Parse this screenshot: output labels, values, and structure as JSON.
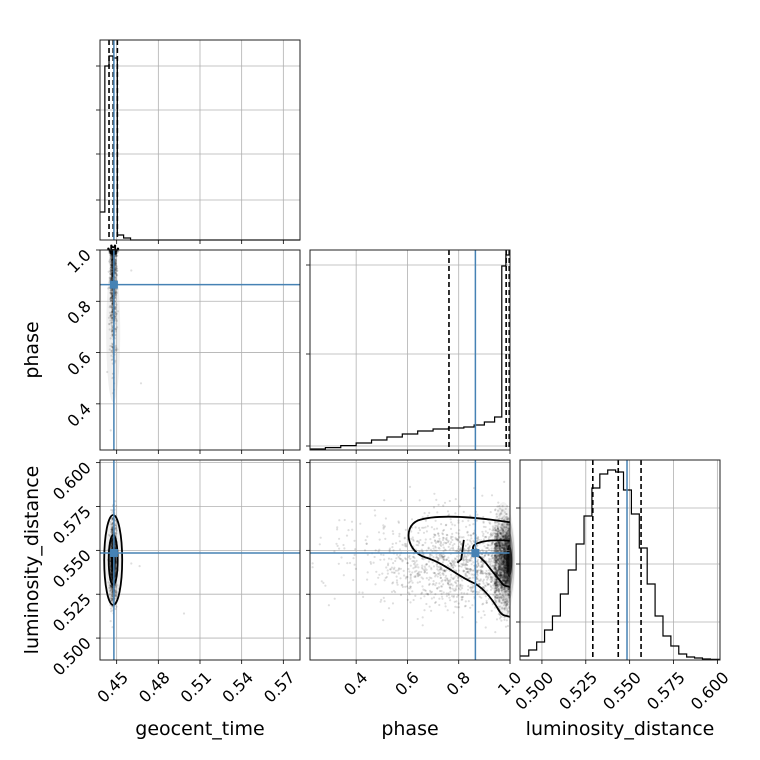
{
  "chart_data": {
    "type": "corner",
    "parameters": [
      {
        "name": "geocent_time",
        "label": "geocent_time",
        "truth": 0.448,
        "quantiles": [
          0.4445,
          0.4475,
          0.4505
        ],
        "range": [
          0.438,
          0.582
        ],
        "ticks": [
          0.45,
          0.48,
          0.51,
          0.54,
          0.57
        ],
        "tick_labels": [
          "0.45",
          "0.48",
          "0.51",
          "0.54",
          "0.57"
        ]
      },
      {
        "name": "phase",
        "label": "phase",
        "truth": 0.865,
        "quantiles": [
          0.762,
          0.985,
          0.997
        ],
        "range": [
          0.22,
          1.0
        ],
        "ticks": [
          0.4,
          0.6,
          0.8,
          1.0
        ],
        "tick_labels": [
          "0.4",
          "0.6",
          "0.8",
          "1.0"
        ]
      },
      {
        "name": "luminosity_distance",
        "label": "luminosity_distance",
        "truth": 0.5485,
        "quantiles": [
          0.529,
          0.5435,
          0.5565
        ],
        "range": [
          0.4875,
          0.6015
        ],
        "ticks": [
          0.5,
          0.525,
          0.55,
          0.575,
          0.6
        ],
        "tick_labels": [
          "0.500",
          "0.525",
          "0.550",
          "0.575",
          "0.600"
        ]
      }
    ],
    "histograms": {
      "geocent_time": {
        "bin_edges": [
          0.438,
          0.4415,
          0.4445,
          0.4475,
          0.4505,
          0.455,
          0.46,
          0.582
        ],
        "counts": [
          0.14,
          0.87,
          0.92,
          0.91,
          0.025,
          0.01,
          0.0
        ]
      },
      "phase": {
        "bin_edges": [
          0.22,
          0.28,
          0.34,
          0.4,
          0.46,
          0.52,
          0.58,
          0.64,
          0.7,
          0.76,
          0.82,
          0.86,
          0.9,
          0.94,
          0.968,
          0.984,
          1.0
        ],
        "counts": [
          0.005,
          0.012,
          0.022,
          0.035,
          0.05,
          0.065,
          0.08,
          0.095,
          0.105,
          0.11,
          0.115,
          0.125,
          0.14,
          0.165,
          0.92,
          0.975
        ]
      },
      "luminosity_distance": {
        "bin_edges": [
          0.4875,
          0.4925,
          0.497,
          0.5015,
          0.506,
          0.5105,
          0.515,
          0.5195,
          0.524,
          0.5285,
          0.533,
          0.5375,
          0.542,
          0.5465,
          0.551,
          0.5555,
          0.56,
          0.5645,
          0.569,
          0.5735,
          0.578,
          0.5825,
          0.587,
          0.5915,
          0.596,
          0.6015
        ],
        "counts": [
          0.02,
          0.05,
          0.09,
          0.15,
          0.22,
          0.33,
          0.45,
          0.58,
          0.72,
          0.86,
          0.93,
          0.95,
          0.94,
          0.85,
          0.73,
          0.56,
          0.38,
          0.22,
          0.12,
          0.07,
          0.03,
          0.015,
          0.01,
          0.005,
          0.003
        ]
      }
    },
    "grid": true,
    "truth_color": "#4682b4",
    "contour_color": "#000000",
    "sample_color": "#000000"
  }
}
